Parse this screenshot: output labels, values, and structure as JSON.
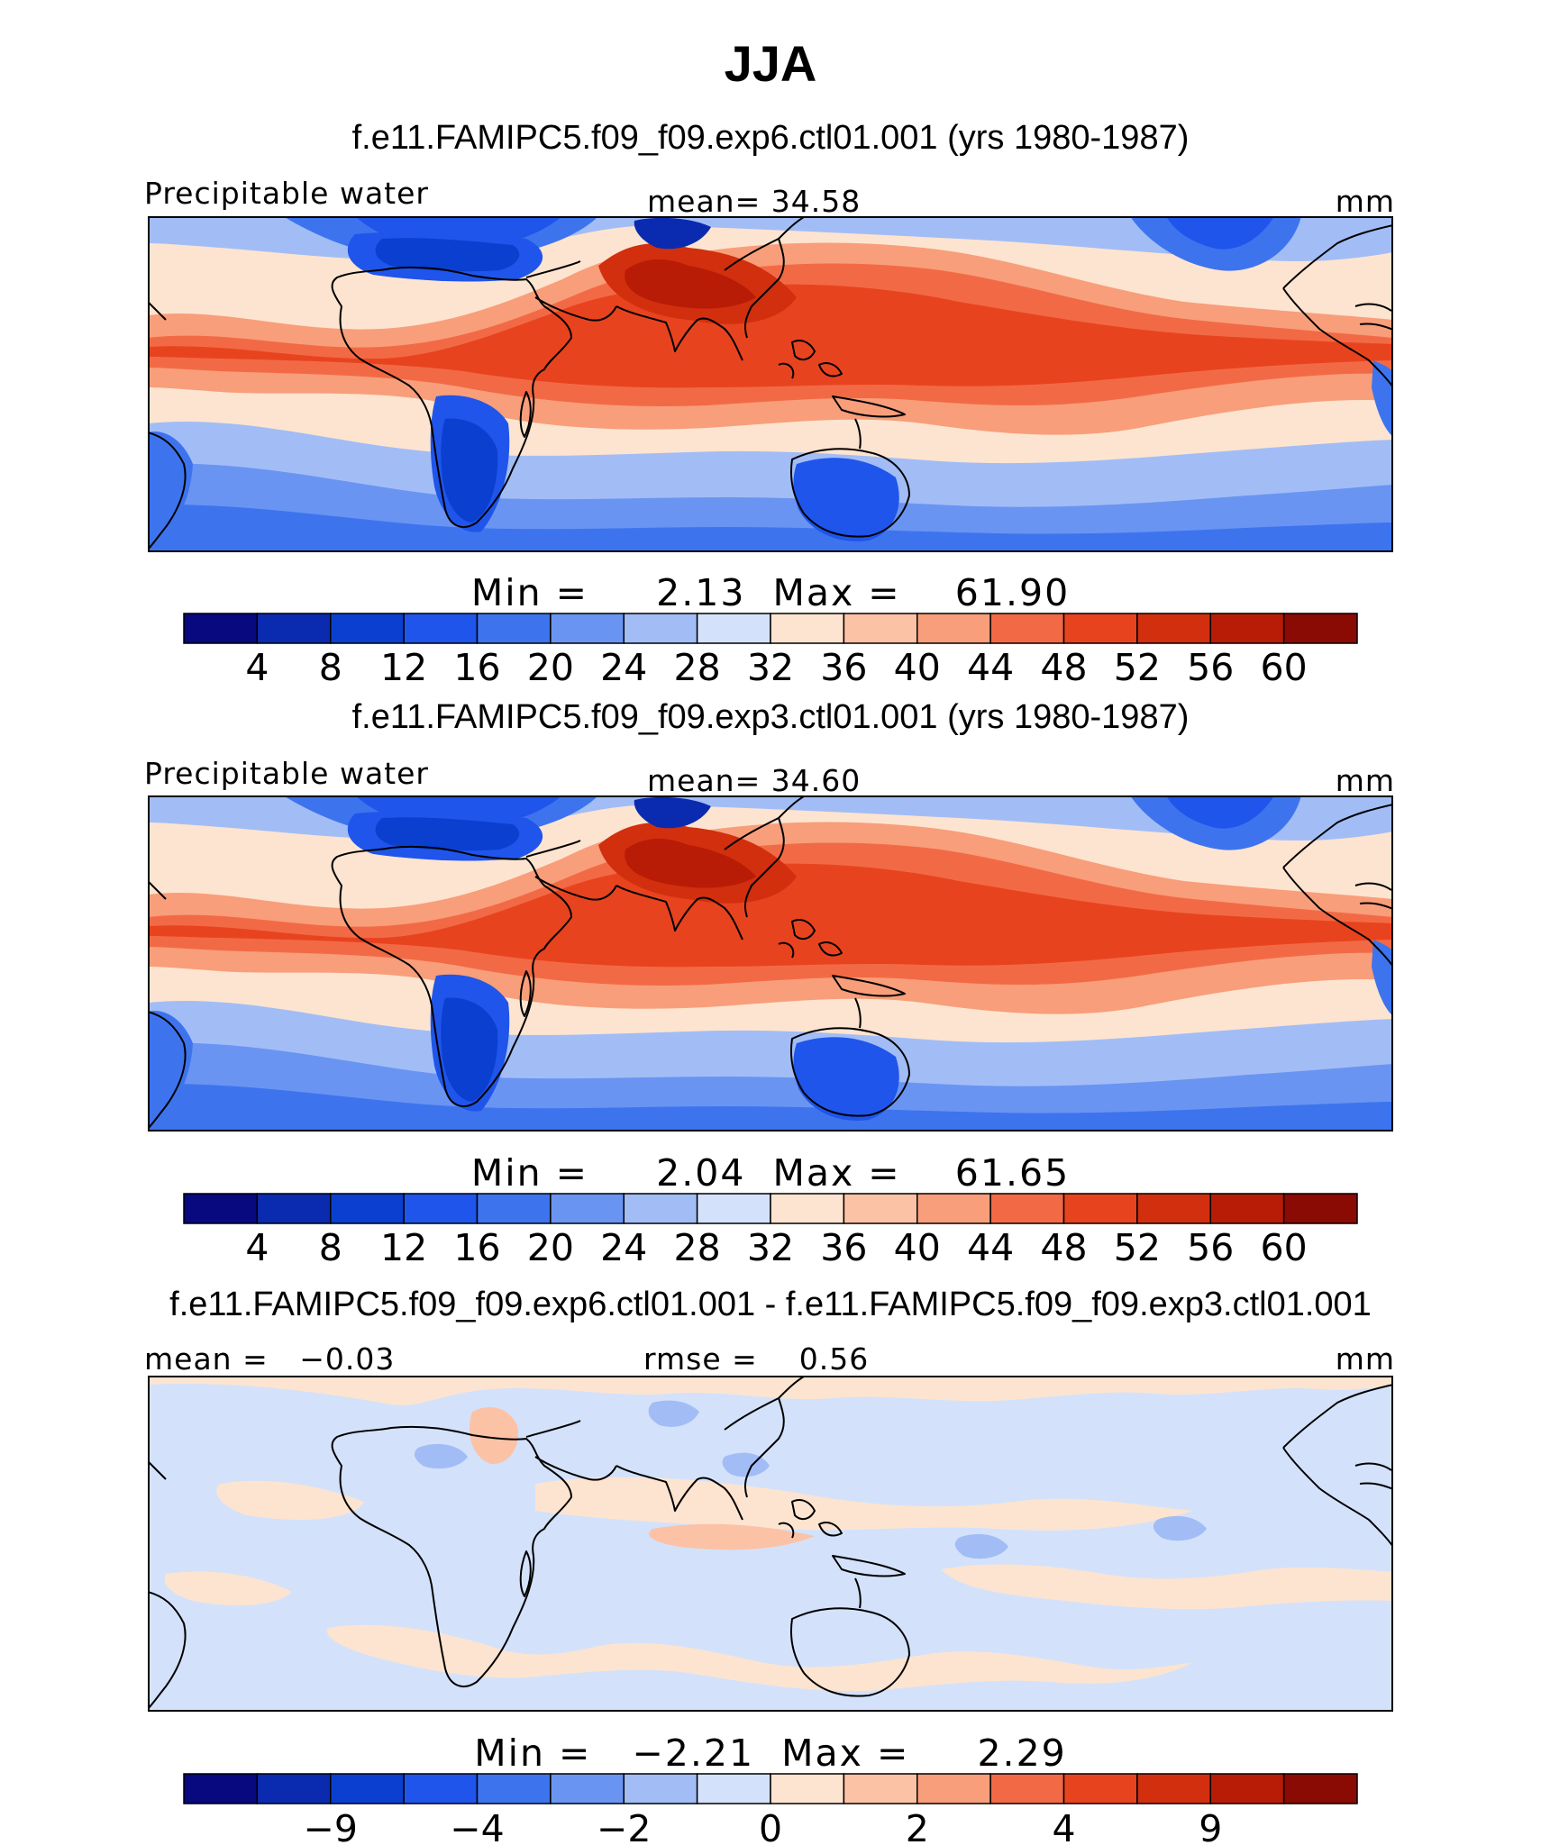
{
  "title": "JJA",
  "colors": {
    "seq": [
      "#08087f",
      "#0a2bb0",
      "#0a3fd0",
      "#1f55ea",
      "#3d74ee",
      "#6a94f2",
      "#a2bdf6",
      "#d3e2fa",
      "#fde4d0",
      "#fcc2a6",
      "#f89e7a",
      "#f26a45",
      "#e8431f",
      "#d22f0e",
      "#b81c06",
      "#8a0a04"
    ],
    "diff": [
      "#08087f",
      "#0a2bb0",
      "#0a3fd0",
      "#1f55ea",
      "#3d74ee",
      "#6a94f2",
      "#a2bdf6",
      "#d3e2fa",
      "#fde4d0",
      "#fcc2a6",
      "#f89e7a",
      "#f26a45",
      "#e8431f",
      "#d22f0e",
      "#b81c06",
      "#8a0a04"
    ]
  },
  "panels": [
    {
      "id": "panel-exp6",
      "subtitle": "f.e11.FAMIPC5.f09_f09.exp6.ctl01.001 (yrs 1980-1987)",
      "left_label": "Precipitable water",
      "center_label": "mean=   34.58",
      "right_label": "mm",
      "stats": "Min =     2.13  Max =    61.90",
      "min": 2.13,
      "max": 61.9,
      "mean": 34.58,
      "colorbar": {
        "palette": "seq",
        "ticks": [
          "4",
          "8",
          "12",
          "16",
          "20",
          "24",
          "28",
          "32",
          "36",
          "40",
          "44",
          "48",
          "52",
          "56",
          "60"
        ]
      }
    },
    {
      "id": "panel-exp3",
      "subtitle": "f.e11.FAMIPC5.f09_f09.exp3.ctl01.001 (yrs 1980-1987)",
      "left_label": "Precipitable water",
      "center_label": "mean=   34.60",
      "right_label": "mm",
      "stats": "Min =     2.04  Max =    61.65",
      "min": 2.04,
      "max": 61.65,
      "mean": 34.6,
      "colorbar": {
        "palette": "seq",
        "ticks": [
          "4",
          "8",
          "12",
          "16",
          "20",
          "24",
          "28",
          "32",
          "36",
          "40",
          "44",
          "48",
          "52",
          "56",
          "60"
        ]
      }
    },
    {
      "id": "panel-diff",
      "subtitle": "f.e11.FAMIPC5.f09_f09.exp6.ctl01.001 - f.e11.FAMIPC5.f09_f09.exp3.ctl01.001",
      "left_label": "mean =   −0.03",
      "center_label": "rmse =    0.56",
      "right_label": "mm",
      "stats": "Min =   −2.21  Max =     2.29",
      "min": -2.21,
      "max": 2.29,
      "mean": -0.03,
      "rmse": 0.56,
      "colorbar": {
        "palette": "diff",
        "ticks": [
          "−9",
          "−4",
          "−2",
          "0",
          "2",
          "4",
          "9"
        ]
      }
    }
  ]
}
